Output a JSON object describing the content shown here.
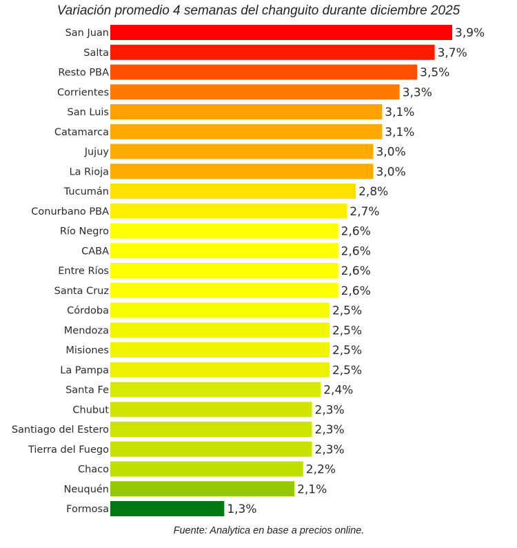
{
  "chart_data": {
    "type": "bar",
    "orientation": "horizontal",
    "title": "Variación promedio 4 semanas del changuito durante diciembre 2025",
    "source": "Fuente: Analytica en base a precios online.",
    "xlabel": "",
    "ylabel": "",
    "xlim": [
      0,
      3.9
    ],
    "grid": false,
    "categories": [
      "San Juan",
      "Salta",
      "Resto PBA",
      "Corrientes",
      "San Luis",
      "Catamarca",
      "Jujuy",
      "La Rioja",
      "Tucumán",
      "Conurbano PBA",
      "Río Negro",
      "CABA",
      "Entre Ríos",
      "Santa Cruz",
      "Córdoba",
      "Mendoza",
      "Misiones",
      "La Pampa",
      "Santa Fe",
      "Chubut",
      "Santiago del Estero",
      "Tierra del Fuego",
      "Chaco",
      "Neuquén",
      "Formosa"
    ],
    "values": [
      3.9,
      3.7,
      3.5,
      3.3,
      3.1,
      3.1,
      3.0,
      3.0,
      2.8,
      2.7,
      2.6,
      2.6,
      2.6,
      2.6,
      2.5,
      2.5,
      2.5,
      2.5,
      2.4,
      2.3,
      2.3,
      2.3,
      2.2,
      2.1,
      1.3
    ],
    "labels": [
      "3,9%",
      "3,7%",
      "3,5%",
      "3,3%",
      "3,1%",
      "3,1%",
      "3,0%",
      "3,0%",
      "2,8%",
      "2,7%",
      "2,6%",
      "2,6%",
      "2,6%",
      "2,6%",
      "2,5%",
      "2,5%",
      "2,5%",
      "2,5%",
      "2,4%",
      "2,3%",
      "2,3%",
      "2,3%",
      "2,2%",
      "2,1%",
      "1,3%"
    ],
    "colors": [
      "#ff0000",
      "#ff1a00",
      "#ff5000",
      "#ff7a00",
      "#ffa200",
      "#ffa800",
      "#ffaa00",
      "#ffaa00",
      "#ffe000",
      "#fff000",
      "#ffff00",
      "#ffff00",
      "#ffff00",
      "#ffff00",
      "#f8fa00",
      "#f2f800",
      "#f0f500",
      "#eef200",
      "#d8ea00",
      "#d0e600",
      "#cce400",
      "#c8e200",
      "#c0de00",
      "#96c800",
      "#007a10"
    ]
  }
}
